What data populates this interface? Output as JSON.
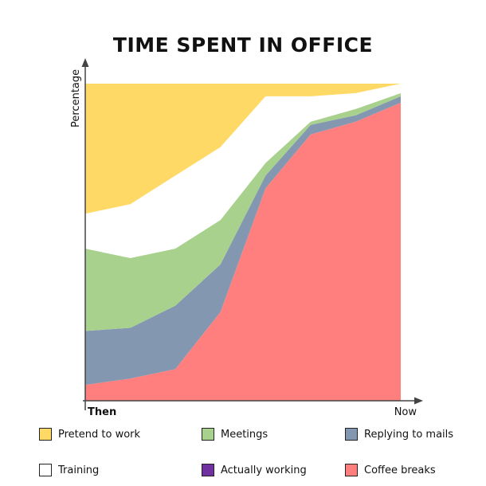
{
  "chart_data": {
    "type": "area",
    "stacked": true,
    "normalized": true,
    "title": "TIME SPENT IN OFFICE",
    "ylabel": "Percentage",
    "x_tick_labels": [
      "Then",
      "Now"
    ],
    "x": [
      0,
      1,
      2,
      3,
      4,
      5,
      6,
      7
    ],
    "series": [
      {
        "name": "Coffee breaks",
        "color": "#ff7f7f",
        "values": [
          5,
          7,
          10,
          28,
          67,
          84,
          88,
          94
        ]
      },
      {
        "name": "Actually working",
        "color": "#7030a0",
        "values": [
          0,
          0,
          0,
          0,
          0,
          0,
          0,
          0
        ]
      },
      {
        "name": "Replying to mails",
        "color": "#8497b0",
        "values": [
          17,
          16,
          20,
          15,
          4,
          3,
          2,
          2
        ]
      },
      {
        "name": "Meetings",
        "color": "#a9d18e",
        "values": [
          26,
          22,
          18,
          14,
          4,
          1,
          2,
          1
        ]
      },
      {
        "name": "Training",
        "color": "#ffffff",
        "values": [
          11,
          17,
          23,
          23,
          21,
          8,
          5,
          3
        ]
      },
      {
        "name": "Pretend to work",
        "color": "#ffd966",
        "values": [
          41,
          38,
          29,
          20,
          4,
          4,
          3,
          0
        ]
      }
    ],
    "ylim": [
      0,
      100
    ],
    "grid": false,
    "legend_position": "bottom"
  },
  "legend": [
    {
      "label": "Pretend to work",
      "color": "#ffd966"
    },
    {
      "label": "Meetings",
      "color": "#a9d18e"
    },
    {
      "label": "Replying to mails",
      "color": "#8497b0"
    },
    {
      "label": "Training",
      "color": "#ffffff"
    },
    {
      "label": "Actually working",
      "color": "#7030a0"
    },
    {
      "label": "Coffee breaks",
      "color": "#ff7f7f"
    }
  ]
}
